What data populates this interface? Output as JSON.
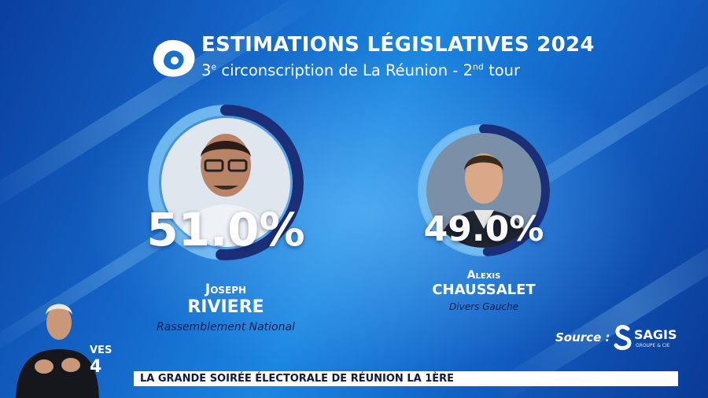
{
  "header": {
    "title": "ESTIMATIONS LÉGISLATIVES 2024",
    "subtitle_num": "3",
    "subtitle_sup": "e",
    "subtitle_mid": " circonscription de La Réunion - 2",
    "subtitle_sup2": "nd",
    "subtitle_end": " tour"
  },
  "candidates": [
    {
      "percent": "51.0%",
      "share": 51.0,
      "first_name": "Joseph",
      "last_name": "RIVIERE",
      "party": "Rassemblement National"
    },
    {
      "percent": "49.0%",
      "share": 49.0,
      "first_name": "Alexis",
      "last_name": "CHAUSSALET",
      "party": "Divers Gauche"
    }
  ],
  "source": {
    "label": "Source :",
    "brand": "SAGIS",
    "brand_sub": "GROUPE & CIE"
  },
  "ticker": {
    "text": "LA GRANDE SOIRÉE ÉLECTORALE DE RÉUNION LA 1ÈRE"
  },
  "background_fragments": {
    "frag1": "VES",
    "frag2": "4"
  },
  "colors": {
    "ring_track": "#7cc4f4",
    "ring_fill": "#1b2f78",
    "party_text": "#0b1e52"
  }
}
